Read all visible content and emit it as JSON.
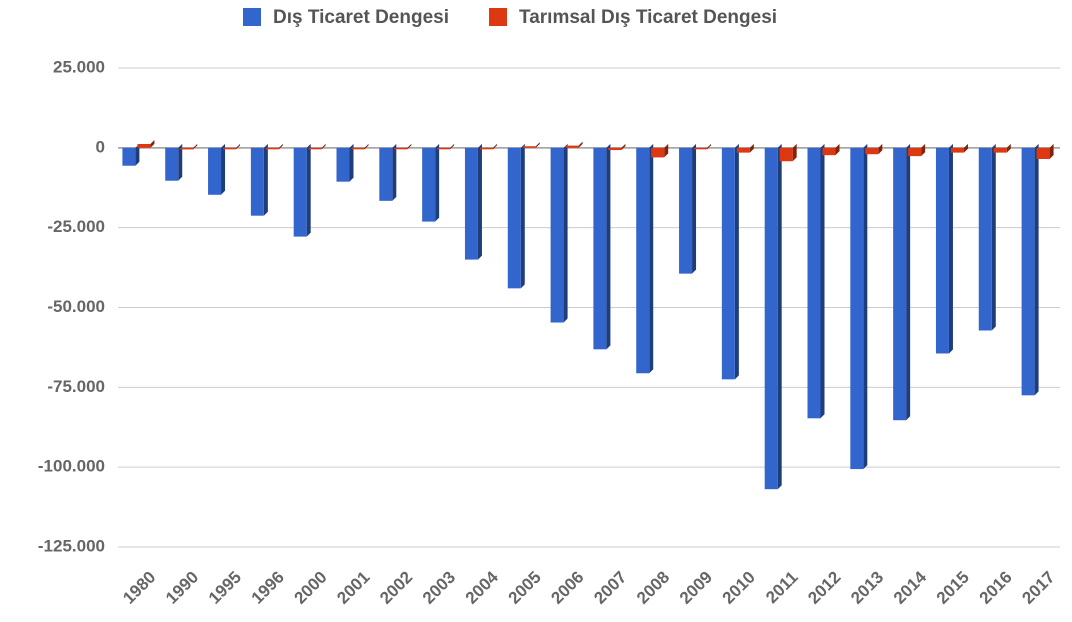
{
  "chart_data": {
    "type": "bar",
    "categories": [
      "1980",
      "1990",
      "1995",
      "1996",
      "2000",
      "2001",
      "2002",
      "2003",
      "2004",
      "2005",
      "2006",
      "2007",
      "2008",
      "2009",
      "2010",
      "2011",
      "2012",
      "2013",
      "2014",
      "2015",
      "2016",
      "2017"
    ],
    "series": [
      {
        "name": "Dış Ticaret Dengesi",
        "color": "#3366cc",
        "values": [
          -5600,
          -10300,
          -14700,
          -21250,
          -27800,
          -10600,
          -16600,
          -23100,
          -35000,
          -44000,
          -54700,
          -63100,
          -70600,
          -39400,
          -72500,
          -106900,
          -84700,
          -100600,
          -85300,
          -64400,
          -57200,
          -77500
        ]
      },
      {
        "name": "Tarımsal Dış Ticaret Dengesi",
        "color": "#dc3912",
        "values": [
          1200,
          -500,
          -300,
          -300,
          -200,
          -100,
          -300,
          -200,
          -200,
          500,
          700,
          -700,
          -3000,
          -300,
          -1500,
          -4200,
          -2300,
          -2000,
          -2600,
          -1500,
          -1500,
          -3500
        ]
      }
    ],
    "ylim": [
      -125000,
      25000
    ],
    "yticks": [
      {
        "value": 25000,
        "label": "25.000"
      },
      0,
      {
        "value": -25000,
        "label": "-25.000"
      },
      {
        "value": -50000,
        "label": "-50.000"
      },
      {
        "value": -75000,
        "label": "-75.000"
      },
      {
        "value": -100000,
        "label": "-100.000"
      },
      {
        "value": -125000,
        "label": "-125.000"
      }
    ],
    "grid": true,
    "legend": "top"
  }
}
